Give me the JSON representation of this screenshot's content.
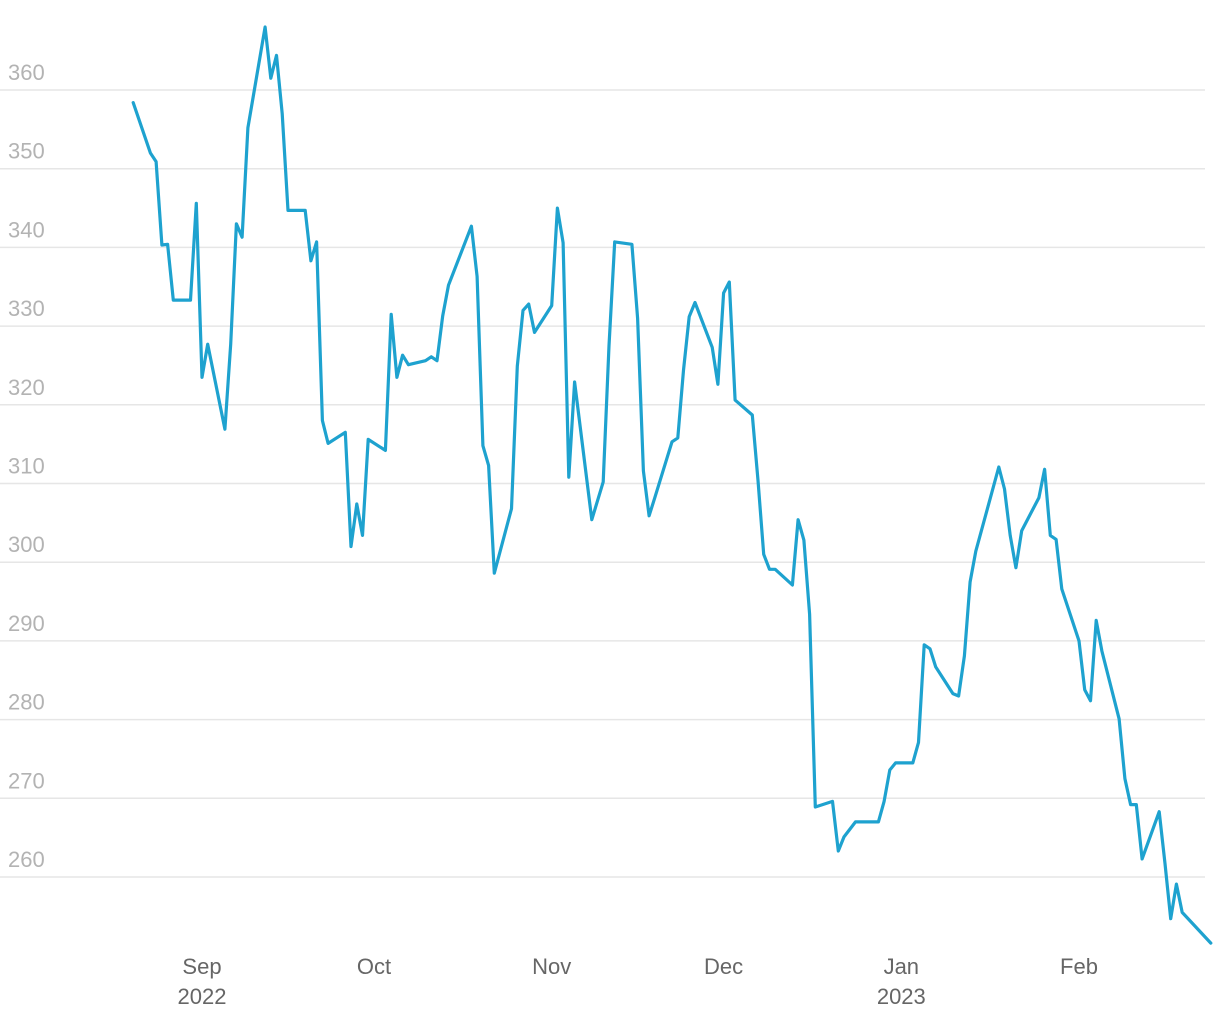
{
  "chart_data": {
    "type": "line",
    "title": "",
    "xlabel": "",
    "ylabel": "",
    "grid": true,
    "legend": "none",
    "colors": {
      "line": "#1ea2cf",
      "grid": "#e6e6e6",
      "y_tick": "#b3b3b3",
      "x_tick": "#666666"
    },
    "x_range": [
      "2022-08-15",
      "2023-02-20"
    ],
    "y_range": [
      250.6,
      368
    ],
    "y_ticks": [
      260,
      270,
      280,
      290,
      300,
      310,
      320,
      330,
      340,
      350,
      360
    ],
    "x_ticks": [
      {
        "date": "2022-09-01",
        "month": "Sep",
        "year": "2022"
      },
      {
        "date": "2022-10-01",
        "month": "Oct",
        "year": ""
      },
      {
        "date": "2022-11-01",
        "month": "Nov",
        "year": ""
      },
      {
        "date": "2022-12-01",
        "month": "Dec",
        "year": ""
      },
      {
        "date": "2023-01-01",
        "month": "Jan",
        "year": "2023"
      },
      {
        "date": "2023-02-01",
        "month": "Feb",
        "year": ""
      }
    ],
    "series": [
      {
        "points": [
          [
            "2022-08-20",
            358.4
          ],
          [
            "2022-08-23",
            352.0
          ],
          [
            "2022-08-24",
            350.9
          ],
          [
            "2022-08-25",
            340.3
          ],
          [
            "2022-08-26",
            340.4
          ],
          [
            "2022-08-27",
            333.3
          ],
          [
            "2022-08-30",
            333.3
          ],
          [
            "2022-08-31",
            345.6
          ],
          [
            "2022-09-01",
            323.5
          ],
          [
            "2022-09-02",
            327.7
          ],
          [
            "2022-09-05",
            316.9
          ],
          [
            "2022-09-06",
            327.7
          ],
          [
            "2022-09-07",
            343.0
          ],
          [
            "2022-09-08",
            341.3
          ],
          [
            "2022-09-09",
            355.2
          ],
          [
            "2022-09-12",
            368.0
          ],
          [
            "2022-09-13",
            361.5
          ],
          [
            "2022-09-14",
            364.4
          ],
          [
            "2022-09-15",
            357.0
          ],
          [
            "2022-09-16",
            344.7
          ],
          [
            "2022-09-19",
            344.7
          ],
          [
            "2022-09-20",
            338.3
          ],
          [
            "2022-09-21",
            340.7
          ],
          [
            "2022-09-22",
            318.0
          ],
          [
            "2022-09-23",
            315.1
          ],
          [
            "2022-09-26",
            316.5
          ],
          [
            "2022-09-27",
            302.0
          ],
          [
            "2022-09-28",
            307.4
          ],
          [
            "2022-09-29",
            303.4
          ],
          [
            "2022-09-30",
            315.6
          ],
          [
            "2022-10-03",
            314.2
          ],
          [
            "2022-10-04",
            331.5
          ],
          [
            "2022-10-05",
            323.5
          ],
          [
            "2022-10-06",
            326.3
          ],
          [
            "2022-10-07",
            325.1
          ],
          [
            "2022-10-10",
            325.6
          ],
          [
            "2022-10-11",
            326.1
          ],
          [
            "2022-10-12",
            325.6
          ],
          [
            "2022-10-13",
            331.3
          ],
          [
            "2022-10-14",
            335.2
          ],
          [
            "2022-10-18",
            342.7
          ],
          [
            "2022-10-19",
            336.3
          ],
          [
            "2022-10-20",
            314.8
          ],
          [
            "2022-10-21",
            312.3
          ],
          [
            "2022-10-22",
            298.6
          ],
          [
            "2022-10-25",
            306.8
          ],
          [
            "2022-10-26",
            324.9
          ],
          [
            "2022-10-27",
            332.0
          ],
          [
            "2022-10-28",
            332.8
          ],
          [
            "2022-10-29",
            329.2
          ],
          [
            "2022-11-01",
            332.6
          ],
          [
            "2022-11-02",
            345.0
          ],
          [
            "2022-11-03",
            340.6
          ],
          [
            "2022-11-04",
            310.8
          ],
          [
            "2022-11-05",
            322.9
          ],
          [
            "2022-11-08",
            305.4
          ],
          [
            "2022-11-09",
            307.8
          ],
          [
            "2022-11-10",
            310.2
          ],
          [
            "2022-11-11",
            327.5
          ],
          [
            "2022-11-12",
            340.7
          ],
          [
            "2022-11-15",
            340.4
          ],
          [
            "2022-11-16",
            331.0
          ],
          [
            "2022-11-17",
            311.6
          ],
          [
            "2022-11-18",
            305.9
          ],
          [
            "2022-11-19",
            308.2
          ],
          [
            "2022-11-22",
            315.3
          ],
          [
            "2022-11-23",
            315.8
          ],
          [
            "2022-11-24",
            324.4
          ],
          [
            "2022-11-25",
            331.2
          ],
          [
            "2022-11-26",
            333.0
          ],
          [
            "2022-11-29",
            327.3
          ],
          [
            "2022-11-30",
            322.6
          ],
          [
            "2022-12-01",
            334.2
          ],
          [
            "2022-12-02",
            335.6
          ],
          [
            "2022-12-03",
            320.6
          ],
          [
            "2022-12-06",
            318.7
          ],
          [
            "2022-12-07",
            310.4
          ],
          [
            "2022-12-08",
            301.0
          ],
          [
            "2022-12-09",
            299.1
          ],
          [
            "2022-12-10",
            299.1
          ],
          [
            "2022-12-13",
            297.1
          ],
          [
            "2022-12-14",
            305.4
          ],
          [
            "2022-12-15",
            302.8
          ],
          [
            "2022-12-16",
            293.4
          ],
          [
            "2022-12-17",
            268.9
          ],
          [
            "2022-12-20",
            269.6
          ],
          [
            "2022-12-21",
            263.3
          ],
          [
            "2022-12-22",
            265.1
          ],
          [
            "2022-12-24",
            267.0
          ],
          [
            "2022-12-28",
            267.0
          ],
          [
            "2022-12-29",
            269.6
          ],
          [
            "2022-12-30",
            273.6
          ],
          [
            "2022-12-31",
            274.5
          ],
          [
            "2023-01-03",
            274.5
          ],
          [
            "2023-01-04",
            277.1
          ],
          [
            "2023-01-05",
            289.5
          ],
          [
            "2023-01-06",
            289.0
          ],
          [
            "2023-01-07",
            286.7
          ],
          [
            "2023-01-10",
            283.3
          ],
          [
            "2023-01-11",
            283.0
          ],
          [
            "2023-01-12",
            288.1
          ],
          [
            "2023-01-13",
            297.5
          ],
          [
            "2023-01-14",
            301.4
          ],
          [
            "2023-01-18",
            312.1
          ],
          [
            "2023-01-19",
            309.3
          ],
          [
            "2023-01-20",
            303.4
          ],
          [
            "2023-01-21",
            299.3
          ],
          [
            "2023-01-22",
            304.0
          ],
          [
            "2023-01-25",
            308.2
          ],
          [
            "2023-01-26",
            311.8
          ],
          [
            "2023-01-27",
            303.4
          ],
          [
            "2023-01-28",
            302.9
          ],
          [
            "2023-01-29",
            296.6
          ],
          [
            "2023-02-01",
            290.0
          ],
          [
            "2023-02-02",
            283.8
          ],
          [
            "2023-02-03",
            282.4
          ],
          [
            "2023-02-04",
            292.6
          ],
          [
            "2023-02-05",
            288.7
          ],
          [
            "2023-02-08",
            280.1
          ],
          [
            "2023-02-09",
            272.5
          ],
          [
            "2023-02-10",
            269.2
          ],
          [
            "2023-02-11",
            269.2
          ],
          [
            "2023-02-12",
            262.3
          ],
          [
            "2023-02-15",
            268.3
          ],
          [
            "2023-02-16",
            261.7
          ],
          [
            "2023-02-17",
            254.7
          ],
          [
            "2023-02-18",
            259.1
          ],
          [
            "2023-02-19",
            255.5
          ],
          [
            "2023-02-24",
            251.6
          ]
        ]
      }
    ]
  }
}
